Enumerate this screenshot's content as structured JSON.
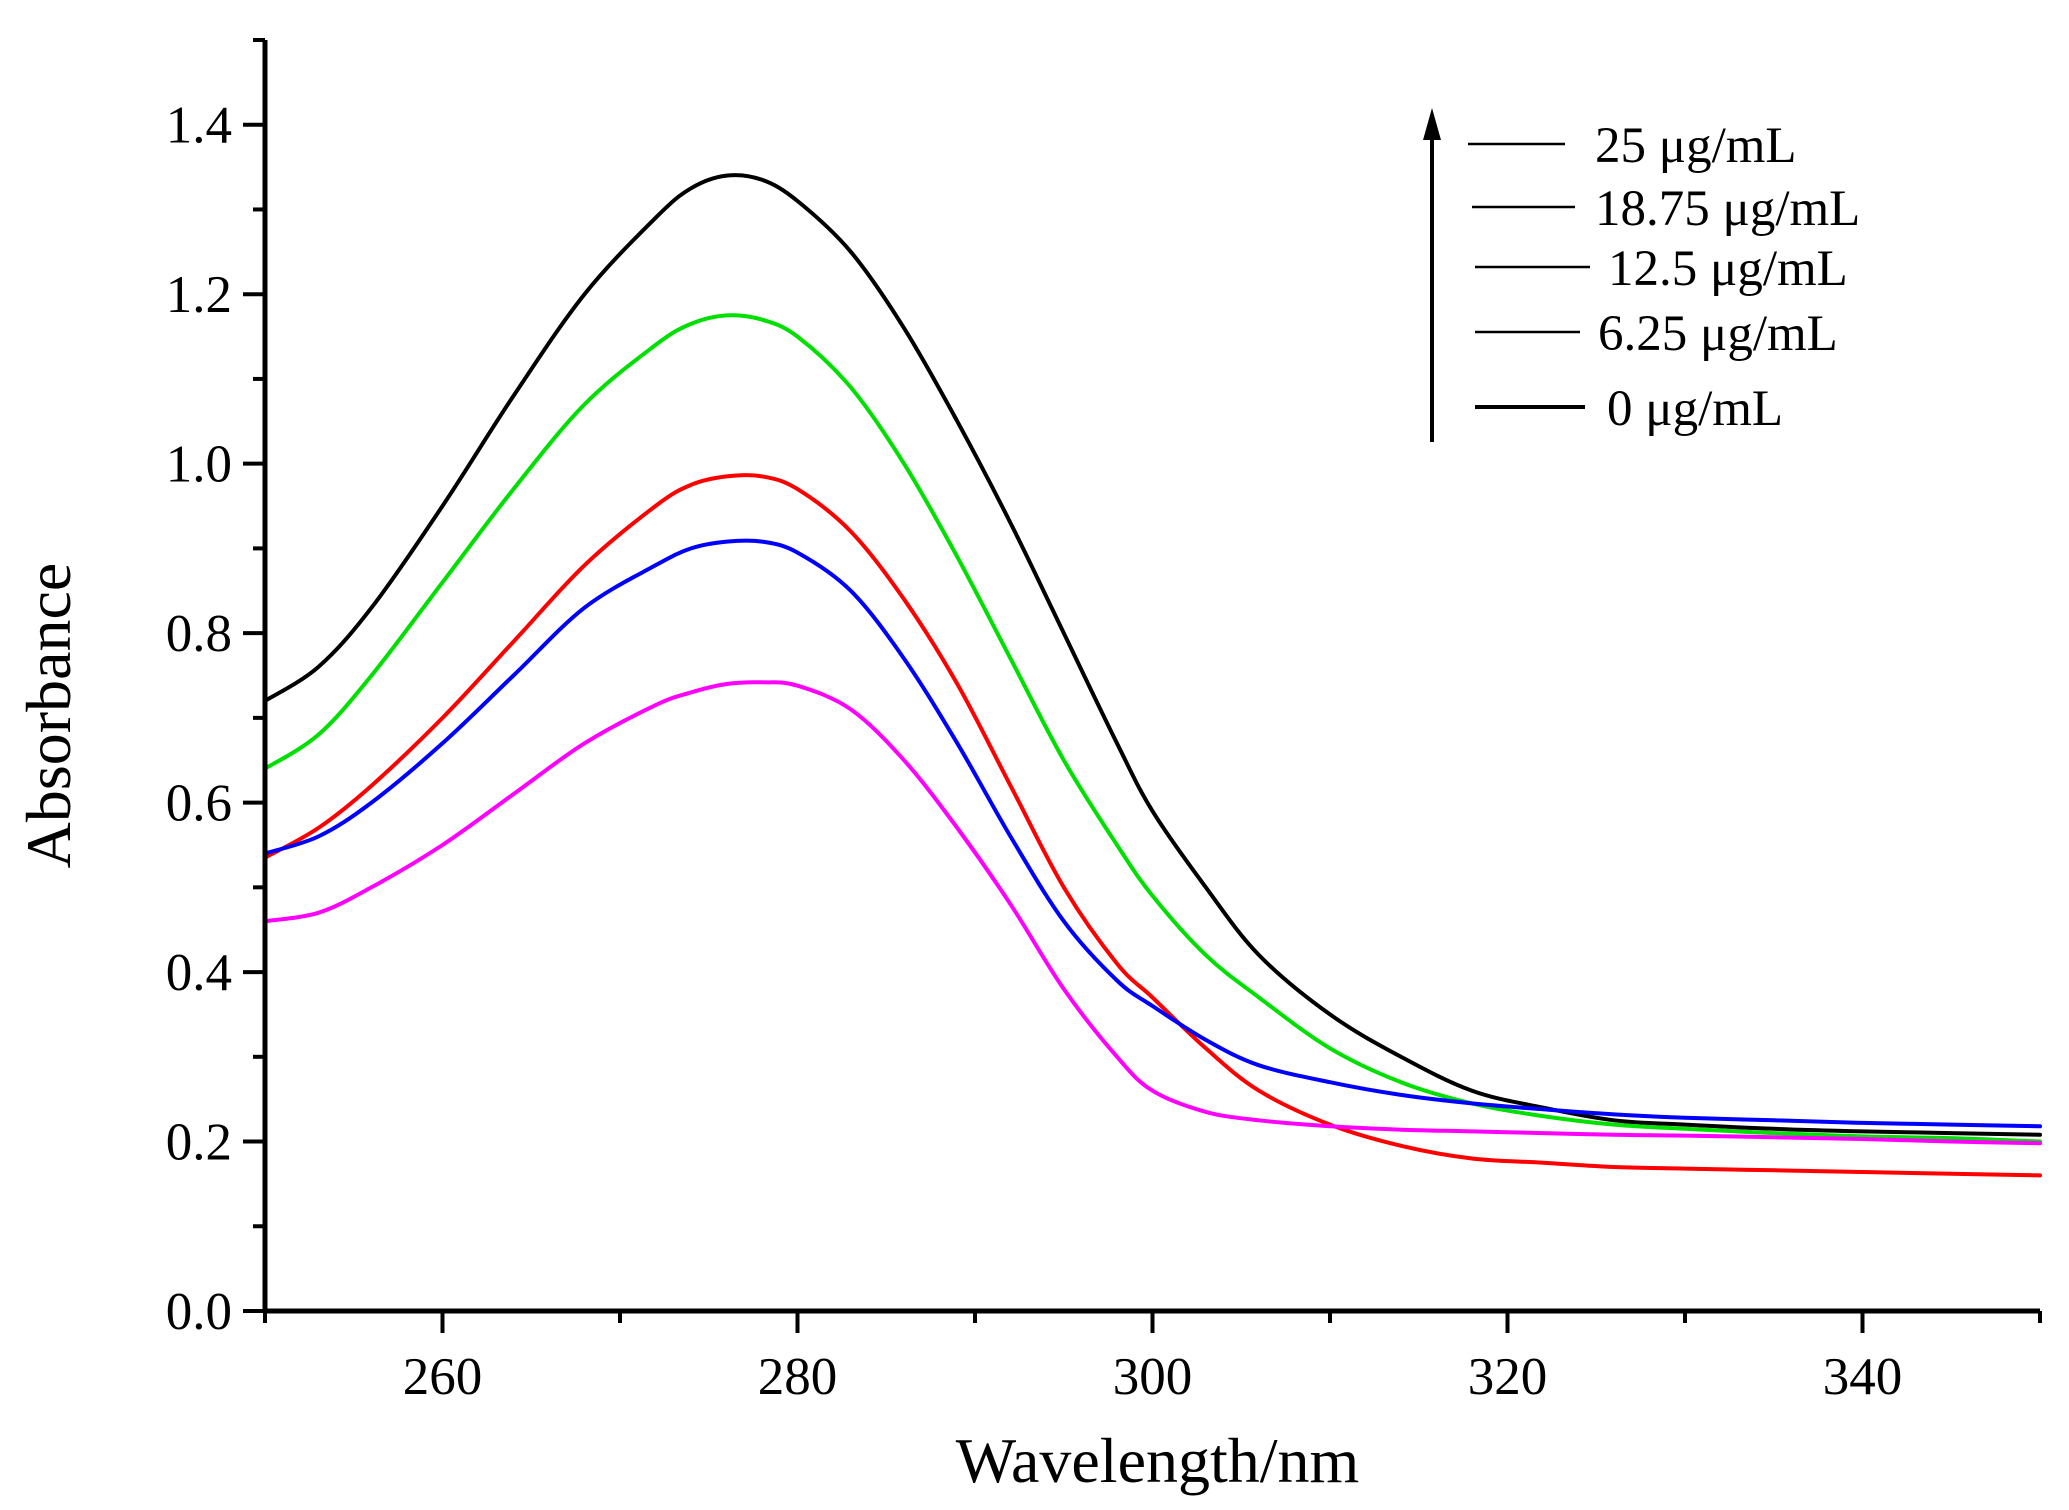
{
  "chart_data": {
    "type": "line",
    "title": "",
    "xlabel": "Wavelength/nm",
    "ylabel": "Absorbance",
    "xlim": [
      250,
      350
    ],
    "ylim": [
      0,
      1.5
    ],
    "x_ticks": [
      "260",
      "280",
      "300",
      "320",
      "340"
    ],
    "y_ticks": [
      "0.0",
      "0.2",
      "0.4",
      "0.6",
      "0.8",
      "1.0",
      "1.2",
      "1.4"
    ],
    "legend": {
      "position": "top-right",
      "arrow": "up",
      "entries": [
        "25 μg/mL",
        "18.75 μg/mL",
        "12.5 μg/mL",
        "6.25 μg/mL",
        "0 μg/mL"
      ]
    },
    "grid": false,
    "series": [
      {
        "color": "#000000",
        "x": [
          250,
          253,
          256,
          260,
          264,
          268,
          272,
          274,
          276,
          278,
          280,
          283,
          286,
          289,
          292,
          295,
          298,
          300,
          303,
          306,
          310,
          314,
          318,
          322,
          326,
          330,
          335,
          340,
          345,
          350
        ],
        "y": [
          0.72,
          0.76,
          0.83,
          0.95,
          1.08,
          1.2,
          1.29,
          1.325,
          1.34,
          1.335,
          1.31,
          1.25,
          1.16,
          1.05,
          0.93,
          0.8,
          0.67,
          0.59,
          0.5,
          0.42,
          0.35,
          0.3,
          0.26,
          0.24,
          0.225,
          0.22,
          0.215,
          0.212,
          0.21,
          0.208
        ]
      },
      {
        "color": "#00e000",
        "x": [
          250,
          253,
          256,
          260,
          264,
          268,
          272,
          274,
          276,
          278,
          280,
          283,
          286,
          289,
          292,
          295,
          298,
          300,
          303,
          306,
          310,
          314,
          318,
          322,
          326,
          330,
          335,
          340,
          345,
          350
        ],
        "y": [
          0.64,
          0.68,
          0.75,
          0.86,
          0.97,
          1.07,
          1.14,
          1.165,
          1.175,
          1.17,
          1.15,
          1.09,
          1.0,
          0.89,
          0.77,
          0.65,
          0.55,
          0.49,
          0.42,
          0.37,
          0.31,
          0.27,
          0.245,
          0.23,
          0.22,
          0.215,
          0.21,
          0.206,
          0.204,
          0.2
        ]
      },
      {
        "color": "#ff0000",
        "x": [
          250,
          253,
          256,
          260,
          264,
          268,
          272,
          274,
          276,
          278,
          280,
          283,
          286,
          289,
          292,
          295,
          298,
          300,
          303,
          306,
          310,
          314,
          318,
          322,
          326,
          330,
          335,
          340,
          345,
          350
        ],
        "y": [
          0.535,
          0.57,
          0.62,
          0.7,
          0.79,
          0.88,
          0.95,
          0.975,
          0.985,
          0.985,
          0.97,
          0.92,
          0.84,
          0.74,
          0.62,
          0.5,
          0.41,
          0.37,
          0.31,
          0.26,
          0.22,
          0.195,
          0.18,
          0.175,
          0.17,
          0.168,
          0.166,
          0.164,
          0.162,
          0.16
        ]
      },
      {
        "color": "#0000ff",
        "x": [
          250,
          253,
          256,
          260,
          264,
          268,
          272,
          274,
          276,
          278,
          280,
          283,
          286,
          289,
          292,
          295,
          298,
          300,
          303,
          306,
          310,
          314,
          318,
          322,
          326,
          330,
          335,
          340,
          345,
          350
        ],
        "y": [
          0.54,
          0.56,
          0.6,
          0.67,
          0.75,
          0.83,
          0.88,
          0.9,
          0.908,
          0.908,
          0.895,
          0.85,
          0.77,
          0.67,
          0.56,
          0.46,
          0.39,
          0.36,
          0.32,
          0.29,
          0.27,
          0.255,
          0.245,
          0.238,
          0.232,
          0.228,
          0.225,
          0.222,
          0.22,
          0.218
        ]
      },
      {
        "color": "#ff00ff",
        "x": [
          250,
          253,
          256,
          260,
          264,
          268,
          272,
          274,
          276,
          278,
          280,
          283,
          286,
          289,
          292,
          295,
          298,
          300,
          303,
          306,
          310,
          314,
          318,
          322,
          326,
          330,
          335,
          340,
          345,
          350
        ],
        "y": [
          0.46,
          0.47,
          0.5,
          0.55,
          0.61,
          0.67,
          0.715,
          0.73,
          0.74,
          0.742,
          0.738,
          0.71,
          0.65,
          0.57,
          0.48,
          0.38,
          0.3,
          0.26,
          0.235,
          0.225,
          0.218,
          0.214,
          0.212,
          0.21,
          0.208,
          0.207,
          0.205,
          0.203,
          0.2,
          0.198
        ]
      }
    ]
  }
}
